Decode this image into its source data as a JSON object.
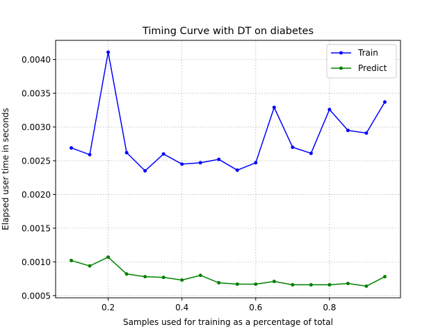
{
  "chart_data": {
    "type": "line",
    "title": "Timing Curve with DT on diabetes",
    "xlabel": "Samples used for training as a percentage of total",
    "ylabel": "Elapsed user time in seconds",
    "x": [
      0.1,
      0.15,
      0.2,
      0.25,
      0.3,
      0.35,
      0.4,
      0.45,
      0.5,
      0.55,
      0.6,
      0.65,
      0.7,
      0.75,
      0.8,
      0.85,
      0.9,
      0.95
    ],
    "series": [
      {
        "name": "Train",
        "color": "#0000ff",
        "values": [
          0.00269,
          0.00259,
          0.00411,
          0.00262,
          0.00235,
          0.0026,
          0.00245,
          0.00247,
          0.00252,
          0.00236,
          0.00247,
          0.00329,
          0.0027,
          0.00261,
          0.00326,
          0.00295,
          0.00291,
          0.00337
        ]
      },
      {
        "name": "Predict",
        "color": "#008000",
        "values": [
          0.00102,
          0.00094,
          0.00107,
          0.00082,
          0.00078,
          0.00077,
          0.00073,
          0.0008,
          0.00069,
          0.00067,
          0.00067,
          0.00071,
          0.00066,
          0.00066,
          0.00066,
          0.00068,
          0.00064,
          0.00078
        ]
      }
    ],
    "xlim": [
      0.0575,
      0.9925
    ],
    "ylim": [
      0.000467,
      0.004285
    ],
    "xticks": [
      0.2,
      0.4,
      0.6,
      0.8
    ],
    "xtick_labels": [
      "0.2",
      "0.4",
      "0.6",
      "0.8"
    ],
    "yticks": [
      0.0005,
      0.001,
      0.0015,
      0.002,
      0.0025,
      0.003,
      0.0035,
      0.004
    ],
    "ytick_labels": [
      "0.0005",
      "0.0010",
      "0.0015",
      "0.0020",
      "0.0025",
      "0.0030",
      "0.0035",
      "0.0040"
    ],
    "grid": true,
    "legend_position": "top-right"
  }
}
